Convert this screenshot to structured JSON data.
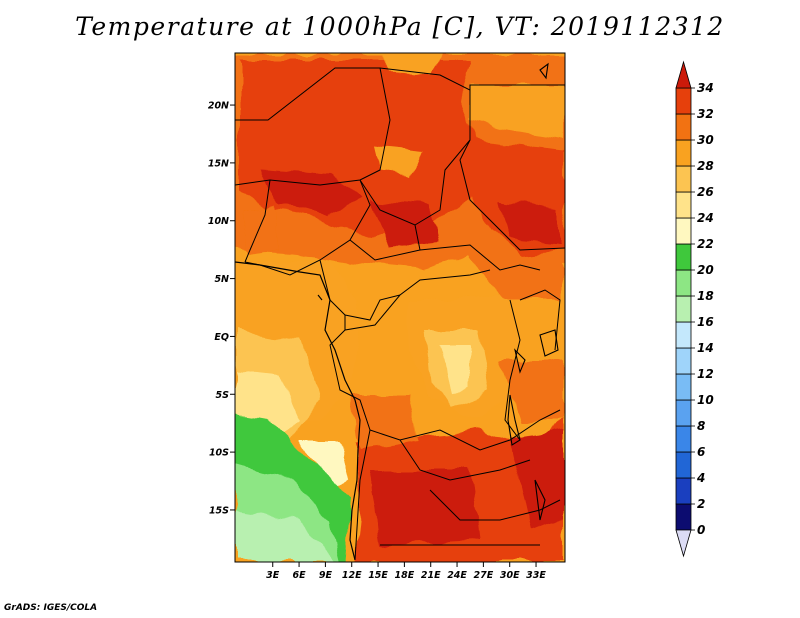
{
  "title": "Temperature at 1000hPa [C], VT: 2019112312",
  "credit": "GrADS: IGES/COLA",
  "map": {
    "lat_range": [
      -19.5,
      24.5
    ],
    "lon_range": [
      -1.3,
      36.3
    ],
    "lat_ticks": [
      {
        "value": 20,
        "label": "20N"
      },
      {
        "value": 15,
        "label": "15N"
      },
      {
        "value": 10,
        "label": "10N"
      },
      {
        "value": 5,
        "label": "5N"
      },
      {
        "value": 0,
        "label": "EQ"
      },
      {
        "value": -5,
        "label": "5S"
      },
      {
        "value": -10,
        "label": "10S"
      },
      {
        "value": -15,
        "label": "15S"
      }
    ],
    "lon_ticks": [
      {
        "value": 3,
        "label": "3E"
      },
      {
        "value": 6,
        "label": "6E"
      },
      {
        "value": 9,
        "label": "9E"
      },
      {
        "value": 12,
        "label": "12E"
      },
      {
        "value": 15,
        "label": "15E"
      },
      {
        "value": 18,
        "label": "18E"
      },
      {
        "value": 21,
        "label": "21E"
      },
      {
        "value": 24,
        "label": "24E"
      },
      {
        "value": 27,
        "label": "27E"
      },
      {
        "value": 30,
        "label": "30E"
      },
      {
        "value": 33,
        "label": "33E"
      }
    ]
  },
  "colorbar": {
    "levels": [
      "0",
      "2",
      "4",
      "6",
      "8",
      "10",
      "12",
      "14",
      "16",
      "18",
      "20",
      "22",
      "24",
      "26",
      "28",
      "30",
      "32",
      "34"
    ],
    "colors": [
      "#0c0c70",
      "#1a3fbf",
      "#2166d6",
      "#3a86e8",
      "#5aa2f0",
      "#79bcf5",
      "#9fd4fa",
      "#c4e8fc",
      "#b8f0b0",
      "#8de684",
      "#3fc83c",
      "#fff8c0",
      "#ffe38a",
      "#fcc451",
      "#f9a220",
      "#f27212",
      "#e6400c"
    ],
    "below_color": "#dcdcf5",
    "above_color": "#cc1a0a"
  }
}
